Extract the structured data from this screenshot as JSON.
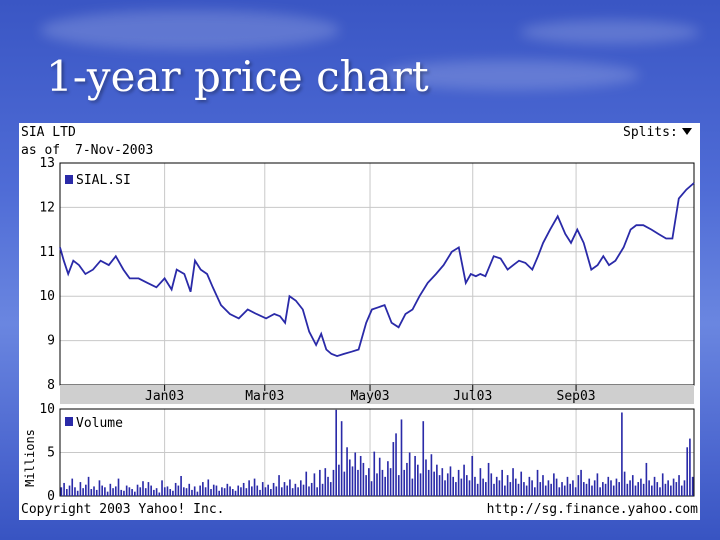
{
  "slide": {
    "title": "1-year price chart"
  },
  "header": {
    "company": "SIA LTD",
    "as_of_label": "as of",
    "as_of_date": "7-Nov-2003",
    "splits_label": "Splits:"
  },
  "footer": {
    "copyright": "Copyright 2003 Yahoo! Inc.",
    "url": "http://sg.finance.yahoo.com"
  },
  "colors": {
    "price_line": "#2a2aa8",
    "volume_bar": "#2a2aa8",
    "grid": "#c8c8c8",
    "axis_band": "#cfcfcf",
    "chart_bg": "#ffffff"
  },
  "chart_data": [
    {
      "type": "line",
      "legend": "SIAL.SI",
      "xlabel": "",
      "ylabel": "",
      "ylim": [
        8,
        13
      ],
      "yticks": [
        8,
        9,
        10,
        11,
        12,
        13
      ],
      "xlim": [
        0,
        1
      ],
      "xticks": [
        {
          "label": "Jan03",
          "at": 0.165
        },
        {
          "label": "Mar03",
          "at": 0.323
        },
        {
          "label": "May03",
          "at": 0.489
        },
        {
          "label": "Jul03",
          "at": 0.651
        },
        {
          "label": "Sep03",
          "at": 0.814
        }
      ],
      "grid": true,
      "legend_position": "top-left",
      "x": [
        0.0,
        0.006,
        0.013,
        0.021,
        0.03,
        0.04,
        0.052,
        0.064,
        0.077,
        0.088,
        0.1,
        0.11,
        0.124,
        0.138,
        0.152,
        0.165,
        0.176,
        0.184,
        0.196,
        0.206,
        0.213,
        0.222,
        0.232,
        0.241,
        0.254,
        0.268,
        0.282,
        0.296,
        0.31,
        0.325,
        0.338,
        0.347,
        0.355,
        0.362,
        0.372,
        0.383,
        0.393,
        0.404,
        0.412,
        0.42,
        0.428,
        0.437,
        0.448,
        0.46,
        0.471,
        0.483,
        0.492,
        0.502,
        0.512,
        0.523,
        0.534,
        0.545,
        0.556,
        0.567,
        0.58,
        0.593,
        0.605,
        0.618,
        0.629,
        0.64,
        0.648,
        0.656,
        0.663,
        0.671,
        0.684,
        0.695,
        0.706,
        0.715,
        0.724,
        0.734,
        0.745,
        0.754,
        0.762,
        0.773,
        0.785,
        0.797,
        0.806,
        0.816,
        0.826,
        0.838,
        0.848,
        0.857,
        0.866,
        0.876,
        0.889,
        0.9,
        0.909,
        0.92,
        0.933,
        0.944,
        0.956,
        0.966,
        0.976,
        0.988,
        1.0
      ],
      "y": [
        11.1,
        10.8,
        10.5,
        10.8,
        10.7,
        10.5,
        10.6,
        10.8,
        10.7,
        10.9,
        10.6,
        10.4,
        10.4,
        10.3,
        10.2,
        10.4,
        10.15,
        10.6,
        10.5,
        10.1,
        10.8,
        10.6,
        10.5,
        10.2,
        9.8,
        9.6,
        9.5,
        9.7,
        9.6,
        9.5,
        9.6,
        9.55,
        9.4,
        10.0,
        9.9,
        9.7,
        9.2,
        8.9,
        9.15,
        8.8,
        8.7,
        8.65,
        8.7,
        8.75,
        8.8,
        9.4,
        9.7,
        9.75,
        9.8,
        9.4,
        9.3,
        9.6,
        9.7,
        10.0,
        10.3,
        10.5,
        10.7,
        11.0,
        11.1,
        10.3,
        10.5,
        10.45,
        10.5,
        10.45,
        10.9,
        10.85,
        10.6,
        10.7,
        10.8,
        10.75,
        10.6,
        10.9,
        11.2,
        11.5,
        11.8,
        11.4,
        11.2,
        11.5,
        11.2,
        10.6,
        10.7,
        10.9,
        10.7,
        10.8,
        11.1,
        11.5,
        11.6,
        11.6,
        11.5,
        11.4,
        11.3,
        11.3,
        12.2,
        12.4,
        12.55
      ]
    },
    {
      "type": "bar",
      "legend": "Volume",
      "xlabel": "",
      "ylabel": "Millions",
      "ylim": [
        0,
        10
      ],
      "yticks": [
        0,
        5,
        10
      ],
      "grid": true,
      "legend_position": "top-left",
      "values": [
        1.0,
        1.5,
        0.8,
        1.2,
        2.0,
        1.0,
        0.6,
        1.6,
        0.9,
        1.3,
        2.2,
        0.8,
        1.1,
        0.7,
        1.8,
        1.2,
        1.0,
        0.5,
        1.4,
        0.9,
        1.1,
        2.0,
        0.7,
        0.6,
        1.2,
        1.0,
        0.8,
        0.5,
        1.3,
        1.0,
        1.7,
        0.9,
        1.6,
        1.2,
        0.7,
        0.9,
        0.4,
        1.8,
        1.0,
        1.1,
        0.8,
        0.6,
        1.5,
        1.2,
        2.3,
        1.0,
        0.9,
        1.4,
        0.7,
        1.1,
        0.5,
        1.2,
        1.6,
        1.0,
        1.9,
        0.8,
        1.3,
        1.2,
        0.6,
        1.0,
        0.9,
        1.4,
        1.1,
        0.8,
        0.6,
        1.2,
        1.0,
        1.5,
        0.9,
        1.8,
        1.1,
        2.0,
        1.2,
        0.7,
        1.6,
        1.0,
        1.3,
        0.8,
        1.5,
        1.1,
        2.4,
        1.0,
        1.6,
        1.2,
        1.9,
        0.9,
        1.4,
        1.0,
        1.8,
        1.3,
        2.8,
        1.1,
        1.5,
        2.6,
        1.0,
        3.0,
        1.4,
        3.2,
        2.2,
        1.6,
        3.0,
        9.9,
        3.6,
        8.6,
        2.8,
        5.6,
        4.2,
        3.4,
        5.0,
        3.0,
        4.6,
        3.8,
        2.4,
        3.2,
        1.7,
        5.1,
        2.6,
        4.4,
        3.0,
        2.2,
        4.0,
        3.2,
        6.2,
        7.2,
        2.4,
        8.8,
        3.0,
        3.8,
        5.0,
        2.0,
        4.6,
        3.6,
        2.6,
        8.6,
        4.2,
        3.0,
        4.8,
        2.8,
        3.6,
        2.4,
        3.2,
        1.8,
        2.6,
        3.4,
        2.2,
        1.6,
        3.0,
        2.0,
        3.6,
        2.4,
        1.8,
        4.6,
        2.2,
        1.4,
        3.2,
        2.0,
        1.6,
        3.8,
        2.6,
        1.4,
        2.2,
        1.8,
        3.0,
        1.2,
        2.4,
        1.6,
        3.2,
        2.0,
        1.4,
        2.8,
        1.6,
        1.2,
        2.2,
        1.8,
        1.0,
        3.0,
        1.6,
        2.4,
        1.2,
        1.8,
        1.4,
        2.6,
        2.0,
        1.0,
        1.6,
        1.2,
        2.2,
        1.4,
        1.8,
        1.0,
        2.4,
        3.0,
        1.6,
        1.4,
        2.0,
        1.2,
        1.8,
        2.6,
        1.0,
        1.6,
        1.4,
        2.2,
        1.8,
        1.2,
        2.0,
        1.6,
        9.6,
        2.8,
        1.4,
        1.8,
        2.4,
        1.2,
        1.6,
        2.0,
        1.4,
        3.8,
        1.8,
        1.2,
        2.2,
        1.6,
        1.0,
        2.6,
        1.4,
        1.8,
        1.2,
        2.0,
        1.6,
        2.4,
        1.2,
        1.8,
        5.6,
        6.6,
        2.2
      ]
    }
  ]
}
